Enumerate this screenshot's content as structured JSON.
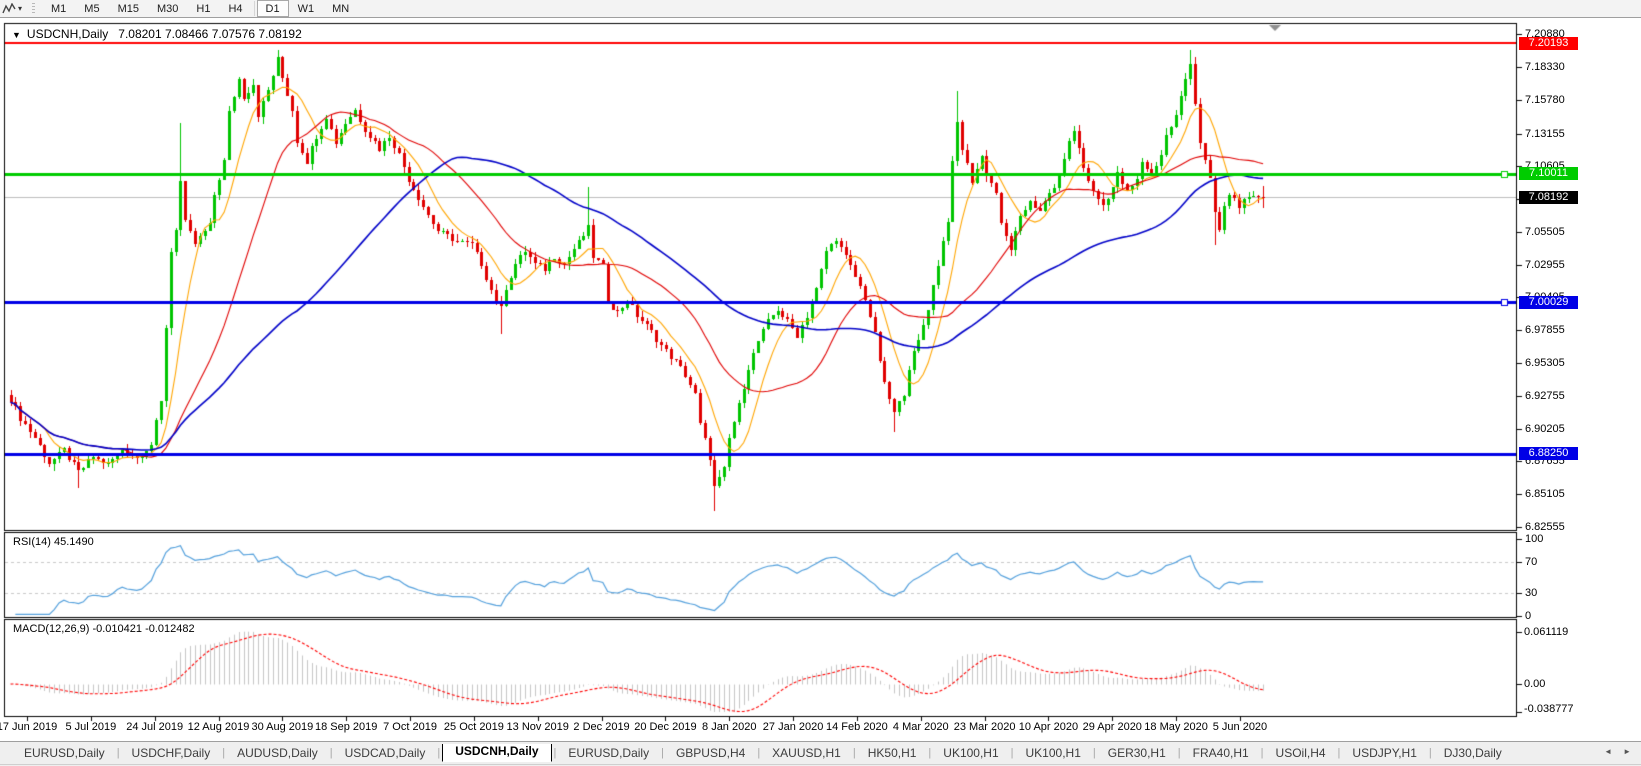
{
  "toolbar": {
    "tool_caret_icon": "▾",
    "periods": [
      {
        "label": "M1",
        "active": false
      },
      {
        "label": "M5",
        "active": false
      },
      {
        "label": "M15",
        "active": false
      },
      {
        "label": "M30",
        "active": false
      },
      {
        "label": "H1",
        "active": false
      },
      {
        "label": "H4",
        "active": false
      },
      {
        "label": "D1",
        "active": true
      },
      {
        "label": "W1",
        "active": false
      },
      {
        "label": "MN",
        "active": false
      }
    ]
  },
  "chart": {
    "title": {
      "caret_icon": "▼",
      "symbol": "USDCNH,Daily",
      "ohlc": "7.08201 7.08466 7.07576 7.08192"
    },
    "colors": {
      "up": "#00c400",
      "down": "#e00000",
      "ma_fast": "#ffa500",
      "ma_mid": "#e00000",
      "ma_slow": "#0000c8",
      "current_price_line": "#bcbcbc"
    },
    "price_axis": {
      "labels": [
        "7.20880",
        "7.18330",
        "7.15780",
        "7.13155",
        "7.10605",
        "7.08055",
        "7.05505",
        "7.02955",
        "7.00405",
        "6.97855",
        "6.95305",
        "6.92755",
        "6.90205",
        "6.87655",
        "6.85105",
        "6.82555"
      ]
    },
    "hlines": [
      {
        "price": 7.20193,
        "label": "7.20193",
        "color": "#ff0000",
        "width": 2,
        "handle": false
      },
      {
        "price": 7.10011,
        "label": "7.10011",
        "color": "#00cc00",
        "width": 3,
        "handle": true
      },
      {
        "price": 7.00029,
        "label": "7.00029",
        "color": "#0000e6",
        "width": 3,
        "handle": true
      },
      {
        "price": 6.8825,
        "label": "6.88250",
        "color": "#0000e6",
        "width": 3,
        "handle": false
      }
    ],
    "current_price": {
      "value": 7.08192,
      "label": "7.08192",
      "badge_bg": "#000000"
    },
    "date_axis": {
      "labels": [
        "17 Jun 2019",
        "5 Jul 2019",
        "24 Jul 2019",
        "12 Aug 2019",
        "30 Aug 2019",
        "18 Sep 2019",
        "7 Oct 2019",
        "25 Oct 2019",
        "13 Nov 2019",
        "2 Dec 2019",
        "20 Dec 2019",
        "8 Jan 2020",
        "27 Jan 2020",
        "14 Feb 2020",
        "4 Mar 2020",
        "23 Mar 2020",
        "10 Apr 2020",
        "29 Apr 2020",
        "18 May 2020",
        "5 Jun 2020"
      ]
    },
    "shift_marker_icon": "▼"
  },
  "chart_data": {
    "type": "candlestick",
    "symbol": "USDCNH",
    "period": "Daily",
    "visible_range": {
      "price_min": 6.82555,
      "price_max": 7.2088,
      "from": "Jun 2019",
      "to": "Jun 2020"
    },
    "bar_count": 259,
    "last_bar": {
      "open": 7.08201,
      "high": 7.08466,
      "low": 7.07576,
      "close": 7.08192
    },
    "close_anchors": [
      [
        0,
        6.925
      ],
      [
        2,
        6.91
      ],
      [
        5,
        6.895
      ],
      [
        8,
        6.875
      ],
      [
        11,
        6.885
      ],
      [
        14,
        6.868
      ],
      [
        17,
        6.88
      ],
      [
        20,
        6.874
      ],
      [
        23,
        6.886
      ],
      [
        26,
        6.879
      ],
      [
        29,
        6.89
      ],
      [
        31,
        6.922
      ],
      [
        33,
        7.04
      ],
      [
        34,
        7.058
      ],
      [
        35,
        7.094
      ],
      [
        36,
        7.062
      ],
      [
        38,
        7.046
      ],
      [
        41,
        7.06
      ],
      [
        42,
        7.084
      ],
      [
        44,
        7.11
      ],
      [
        45,
        7.148
      ],
      [
        47,
        7.174
      ],
      [
        48,
        7.16
      ],
      [
        50,
        7.17
      ],
      [
        51,
        7.146
      ],
      [
        53,
        7.165
      ],
      [
        55,
        7.189
      ],
      [
        56,
        7.175
      ],
      [
        58,
        7.15
      ],
      [
        59,
        7.126
      ],
      [
        61,
        7.11
      ],
      [
        63,
        7.13
      ],
      [
        65,
        7.145
      ],
      [
        67,
        7.125
      ],
      [
        69,
        7.14
      ],
      [
        71,
        7.15
      ],
      [
        73,
        7.135
      ],
      [
        76,
        7.12
      ],
      [
        78,
        7.13
      ],
      [
        80,
        7.115
      ],
      [
        82,
        7.096
      ],
      [
        84,
        7.082
      ],
      [
        86,
        7.068
      ],
      [
        88,
        7.056
      ],
      [
        90,
        7.052
      ],
      [
        92,
        7.048
      ],
      [
        95,
        7.045
      ],
      [
        97,
        7.03
      ],
      [
        99,
        7.01
      ],
      [
        101,
        6.995
      ],
      [
        102,
        7.012
      ],
      [
        104,
        7.03
      ],
      [
        106,
        7.04
      ],
      [
        108,
        7.03
      ],
      [
        110,
        7.026
      ],
      [
        112,
        7.036
      ],
      [
        114,
        7.03
      ],
      [
        116,
        7.042
      ],
      [
        118,
        7.052
      ],
      [
        119,
        7.058
      ],
      [
        120,
        7.036
      ],
      [
        122,
        7.028
      ],
      [
        123,
        7.002
      ],
      [
        125,
        6.992
      ],
      [
        127,
        7.002
      ],
      [
        129,
        6.99
      ],
      [
        131,
        6.982
      ],
      [
        133,
        6.972
      ],
      [
        135,
        6.962
      ],
      [
        137,
        6.954
      ],
      [
        139,
        6.944
      ],
      [
        141,
        6.928
      ],
      [
        142,
        6.905
      ],
      [
        144,
        6.88
      ],
      [
        145,
        6.856
      ],
      [
        147,
        6.87
      ],
      [
        148,
        6.894
      ],
      [
        150,
        6.92
      ],
      [
        152,
        6.95
      ],
      [
        154,
        6.97
      ],
      [
        156,
        6.985
      ],
      [
        158,
        6.995
      ],
      [
        160,
        6.985
      ],
      [
        162,
        6.975
      ],
      [
        164,
        6.99
      ],
      [
        166,
        7.01
      ],
      [
        168,
        7.04
      ],
      [
        170,
        7.05
      ],
      [
        172,
        7.035
      ],
      [
        174,
        7.02
      ],
      [
        176,
        7.004
      ],
      [
        178,
        6.975
      ],
      [
        180,
        6.936
      ],
      [
        182,
        6.914
      ],
      [
        184,
        6.93
      ],
      [
        185,
        6.95
      ],
      [
        187,
        6.97
      ],
      [
        189,
        6.996
      ],
      [
        191,
        7.03
      ],
      [
        193,
        7.065
      ],
      [
        194,
        7.108
      ],
      [
        195,
        7.14
      ],
      [
        196,
        7.12
      ],
      [
        198,
        7.095
      ],
      [
        200,
        7.114
      ],
      [
        201,
        7.1
      ],
      [
        203,
        7.086
      ],
      [
        204,
        7.06
      ],
      [
        206,
        7.042
      ],
      [
        208,
        7.065
      ],
      [
        210,
        7.08
      ],
      [
        212,
        7.07
      ],
      [
        214,
        7.085
      ],
      [
        216,
        7.096
      ],
      [
        217,
        7.114
      ],
      [
        219,
        7.134
      ],
      [
        221,
        7.105
      ],
      [
        223,
        7.086
      ],
      [
        225,
        7.076
      ],
      [
        227,
        7.09
      ],
      [
        228,
        7.1
      ],
      [
        230,
        7.086
      ],
      [
        232,
        7.095
      ],
      [
        233,
        7.11
      ],
      [
        235,
        7.1
      ],
      [
        237,
        7.115
      ],
      [
        238,
        7.13
      ],
      [
        240,
        7.145
      ],
      [
        241,
        7.16
      ],
      [
        243,
        7.188
      ],
      [
        244,
        7.155
      ],
      [
        245,
        7.125
      ],
      [
        247,
        7.095
      ],
      [
        248,
        7.07
      ],
      [
        249,
        7.056
      ],
      [
        250,
        7.074
      ],
      [
        251,
        7.085
      ],
      [
        253,
        7.076
      ],
      [
        255,
        7.08
      ],
      [
        257,
        7.083
      ],
      [
        258,
        7.08192
      ]
    ],
    "wick_overrides": [
      [
        14,
        "l",
        6.856
      ],
      [
        35,
        "h",
        7.14
      ],
      [
        55,
        "h",
        7.1962
      ],
      [
        101,
        "l",
        6.976
      ],
      [
        119,
        "h",
        7.09
      ],
      [
        145,
        "l",
        6.838
      ],
      [
        182,
        "l",
        6.899
      ],
      [
        195,
        "h",
        7.165
      ],
      [
        243,
        "h",
        7.1964
      ],
      [
        248,
        "l",
        7.045
      ]
    ],
    "moving_averages": [
      {
        "name": "ma-fast",
        "window": 8,
        "color": "#ffa500"
      },
      {
        "name": "ma-mid",
        "window": 24,
        "color": "#e00000"
      },
      {
        "name": "ma-slow",
        "window": 60,
        "color": "#0000c8"
      }
    ]
  },
  "rsi": {
    "label": "RSI(14) 45.1490",
    "period": 14,
    "current": 45.149,
    "line_color": "#54a0dc",
    "level_lines": [
      70,
      30
    ],
    "axis": [
      {
        "label": "100",
        "value": 100
      },
      {
        "label": "70",
        "value": 70
      },
      {
        "label": "30",
        "value": 30
      },
      {
        "label": "0",
        "value": 0
      }
    ]
  },
  "macd": {
    "label": "MACD(12,26,9) -0.010421 -0.012482",
    "fast": 12,
    "slow": 26,
    "signal_period": 9,
    "main_value": -0.010421,
    "signal_value": -0.012482,
    "histogram_color": "#c6c6c6",
    "signal_color": "#ff0000",
    "axis": [
      {
        "label": "0.061119",
        "value": 0.061119
      },
      {
        "label": "0.00",
        "value": 0
      },
      {
        "label": "-0.038777",
        "value": -0.038777
      }
    ]
  },
  "tabs": {
    "scroll_left_icon": "◄",
    "scroll_right_icon": "►",
    "items": [
      {
        "label": "EURUSD,Daily",
        "active": false
      },
      {
        "label": "USDCHF,Daily",
        "active": false
      },
      {
        "label": "AUDUSD,Daily",
        "active": false
      },
      {
        "label": "USDCAD,Daily",
        "active": false
      },
      {
        "label": "USDCNH,Daily",
        "active": true
      },
      {
        "label": "EURUSD,Daily",
        "active": false
      },
      {
        "label": "GBPUSD,H4",
        "active": false
      },
      {
        "label": "XAUUSD,H1",
        "active": false
      },
      {
        "label": "HK50,H1",
        "active": false
      },
      {
        "label": "UK100,H1",
        "active": false
      },
      {
        "label": "UK100,H1",
        "active": false
      },
      {
        "label": "GER30,H1",
        "active": false
      },
      {
        "label": "FRA40,H1",
        "active": false
      },
      {
        "label": "USOil,H4",
        "active": false
      },
      {
        "label": "USDJPY,H1",
        "active": false
      },
      {
        "label": "DJ30,Daily",
        "active": false
      }
    ]
  }
}
